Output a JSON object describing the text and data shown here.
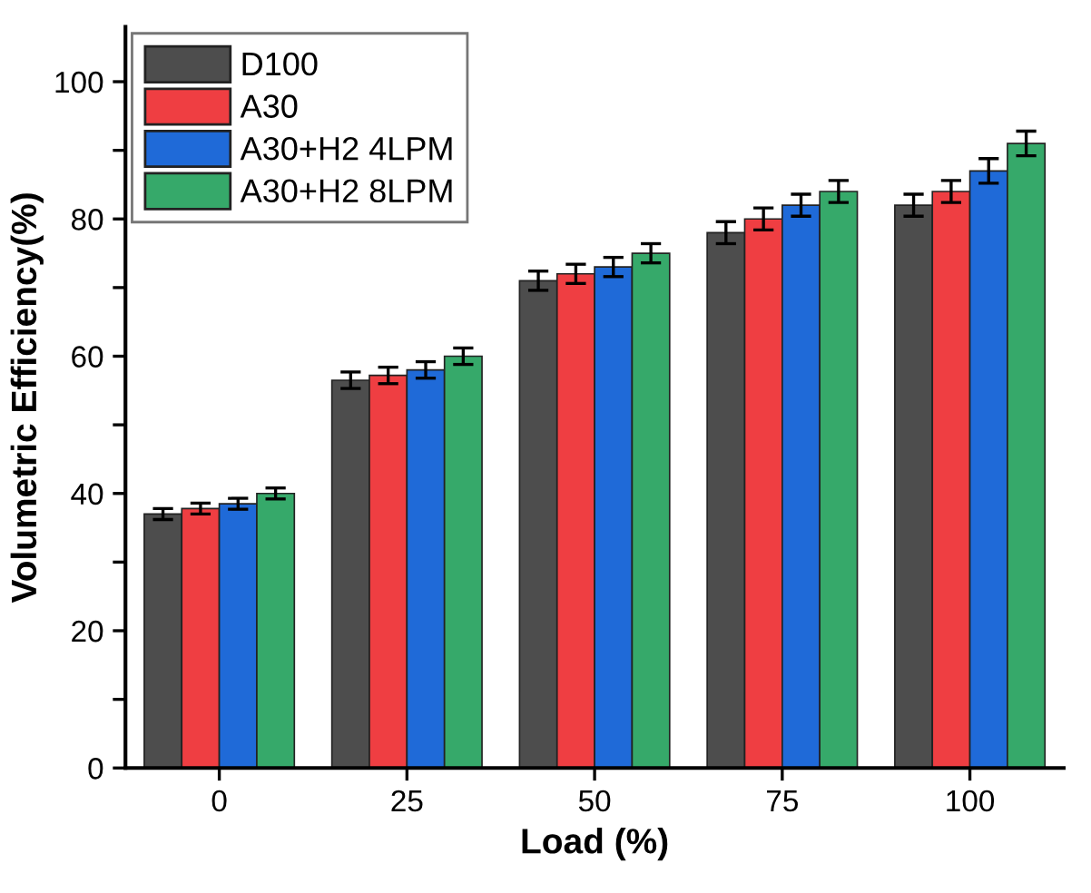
{
  "chart_data": {
    "type": "bar",
    "xlabel": "Load (%)",
    "ylabel": "Volumetric Efficiency(%)",
    "categories": [
      "0",
      "25",
      "50",
      "75",
      "100"
    ],
    "series": [
      {
        "name": "D100",
        "color": "#4d4d4d",
        "values": [
          37,
          56.5,
          71,
          78,
          82
        ],
        "errors": [
          0.8,
          1.2,
          1.4,
          1.6,
          1.6
        ]
      },
      {
        "name": "A30",
        "color": "#ef3e42",
        "values": [
          37.8,
          57.2,
          72,
          80,
          84
        ],
        "errors": [
          0.8,
          1.2,
          1.4,
          1.6,
          1.6
        ]
      },
      {
        "name": "A30+H2 4LPM",
        "color": "#1f6ad8",
        "values": [
          38.5,
          58,
          73,
          82,
          87
        ],
        "errors": [
          0.8,
          1.2,
          1.4,
          1.6,
          1.8
        ]
      },
      {
        "name": "A30+H2 8LPM",
        "color": "#36a96a",
        "values": [
          40,
          60,
          75,
          84,
          91
        ],
        "errors": [
          0.8,
          1.2,
          1.4,
          1.6,
          1.8
        ]
      }
    ],
    "ylim": [
      0,
      108
    ],
    "yticks": [
      0,
      {
        "value": 10,
        "label": null
      },
      20,
      {
        "value": 30,
        "label": null
      },
      40,
      {
        "value": 50,
        "label": null
      },
      60,
      {
        "value": 70,
        "label": null
      },
      80,
      {
        "value": 90,
        "label": null
      },
      100
    ],
    "legend": "top left",
    "grid": false
  }
}
